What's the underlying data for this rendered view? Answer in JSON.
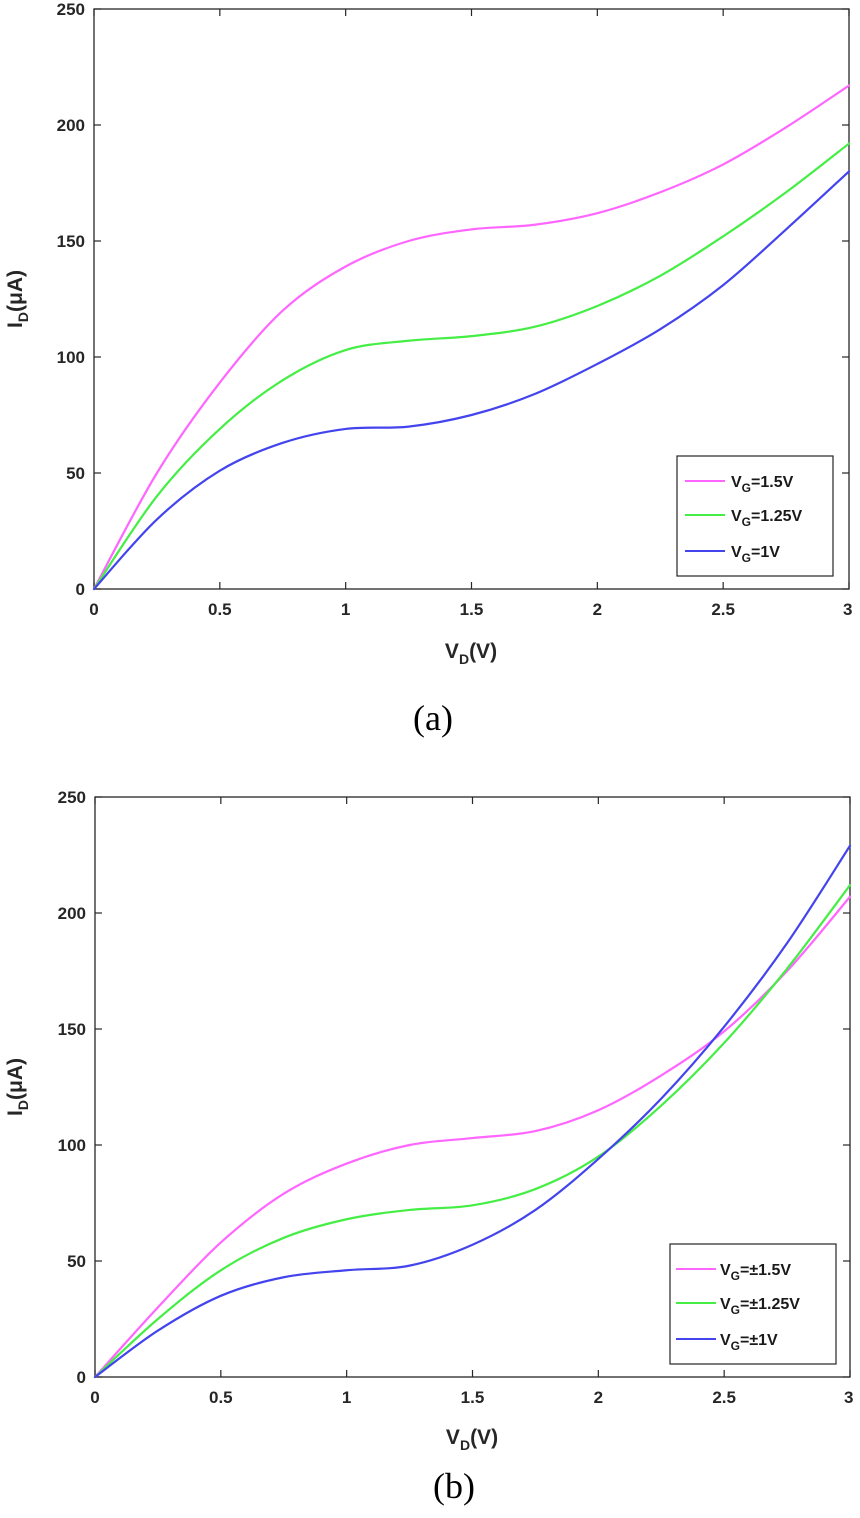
{
  "chart_data": [
    {
      "type": "line",
      "caption": "(a)",
      "xlabel_main": "V",
      "xlabel_sub": "D",
      "xlabel_tail": "(V)",
      "ylabel_main": "I",
      "ylabel_sub": "D",
      "ylabel_tail": "(μA)",
      "xlim": [
        0,
        3
      ],
      "ylim": [
        0,
        250
      ],
      "xticks": [
        0,
        0.5,
        1,
        1.5,
        2,
        2.5,
        3
      ],
      "xtick_labels": [
        "0",
        "0.5",
        "1",
        "1.5",
        "2",
        "2.5",
        "3"
      ],
      "yticks": [
        0,
        50,
        100,
        150,
        200,
        250
      ],
      "ytick_labels": [
        "0",
        "50",
        "100",
        "150",
        "200",
        "250"
      ],
      "legend_position": "bottom-right",
      "x": [
        0,
        0.25,
        0.5,
        0.75,
        1.0,
        1.25,
        1.5,
        1.75,
        2.0,
        2.25,
        2.5,
        2.75,
        3.0
      ],
      "series": [
        {
          "name_main": "V",
          "name_sub": "G",
          "name_tail": "=1.5V",
          "color": "#ff66ff",
          "values": [
            0,
            50,
            89,
            120,
            139,
            150,
            155,
            157,
            162,
            171,
            183,
            199,
            217
          ]
        },
        {
          "name_main": "V",
          "name_sub": "G",
          "name_tail": "=1.25V",
          "color": "#44ee44",
          "values": [
            0,
            40,
            69,
            90,
            103,
            107,
            109,
            113,
            122,
            135,
            152,
            171,
            192
          ]
        },
        {
          "name_main": "V",
          "name_sub": "G",
          "name_tail": "=1V",
          "color": "#4444ee",
          "values": [
            0,
            30,
            51,
            63,
            69,
            70,
            75,
            84,
            97,
            112,
            131,
            155,
            180
          ]
        }
      ]
    },
    {
      "type": "line",
      "caption": "(b)",
      "xlabel_main": "V",
      "xlabel_sub": "D",
      "xlabel_tail": "(V)",
      "ylabel_main": "I",
      "ylabel_sub": "D",
      "ylabel_tail": "(μA)",
      "xlim": [
        0,
        3
      ],
      "ylim": [
        0,
        250
      ],
      "xticks": [
        0,
        0.5,
        1,
        1.5,
        2,
        2.5,
        3
      ],
      "xtick_labels": [
        "0",
        "0.5",
        "1",
        "1.5",
        "2",
        "2.5",
        "3"
      ],
      "yticks": [
        0,
        50,
        100,
        150,
        200,
        250
      ],
      "ytick_labels": [
        "0",
        "50",
        "100",
        "150",
        "200",
        "250"
      ],
      "legend_position": "bottom-right",
      "x": [
        0,
        0.25,
        0.5,
        0.75,
        1.0,
        1.25,
        1.5,
        1.75,
        2.0,
        2.25,
        2.5,
        2.75,
        3.0
      ],
      "series": [
        {
          "name_main": "V",
          "name_sub": "G",
          "name_tail": "=±1.5V",
          "color": "#ff66ff",
          "values": [
            0,
            30,
            58,
            79,
            92,
            100,
            103,
            106,
            115,
            130,
            149,
            175,
            207
          ]
        },
        {
          "name_main": "V",
          "name_sub": "G",
          "name_tail": "=±1.25V",
          "color": "#44ee44",
          "values": [
            0,
            25,
            46,
            60,
            68,
            72,
            74,
            81,
            95,
            117,
            144,
            176,
            212
          ]
        },
        {
          "name_main": "V",
          "name_sub": "G",
          "name_tail": "=±1V",
          "color": "#4444ee",
          "values": [
            0,
            20,
            35,
            43,
            46,
            48,
            57,
            72,
            94,
            120,
            151,
            187,
            229
          ]
        }
      ]
    }
  ]
}
